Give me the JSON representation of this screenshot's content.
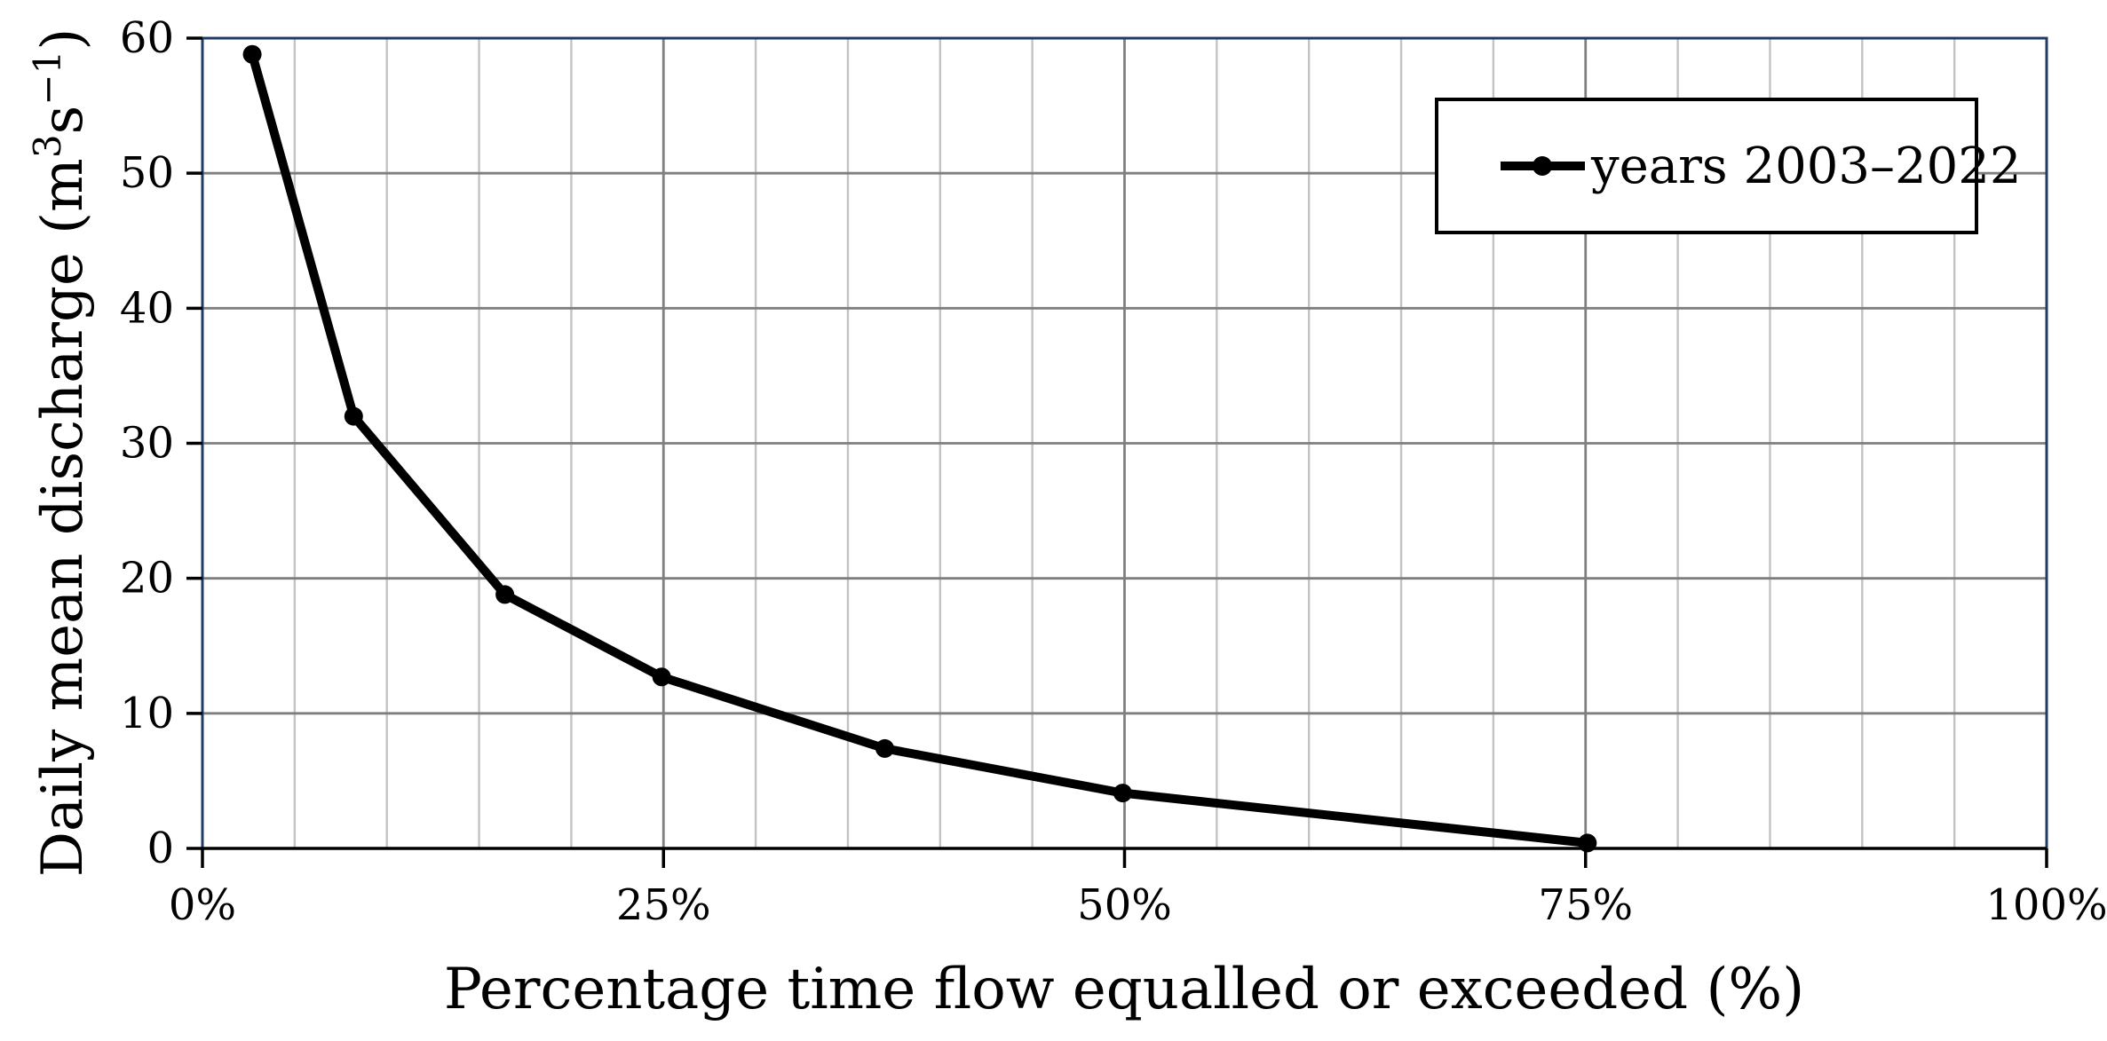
{
  "figure": {
    "kind": "flow-duration-curve"
  },
  "chart_data": {
    "type": "line",
    "title": "",
    "xlabel": "Percentage time flow equalled or exceeded (%)",
    "ylabel": "Daily mean discharge (m³s⁻¹)",
    "xlim": [
      0,
      100
    ],
    "ylim": [
      0,
      60
    ],
    "x_tick_values": [
      0,
      25,
      50,
      75,
      100
    ],
    "x_tick_labels": [
      "0%",
      "25%",
      "50%",
      "75%",
      "100%"
    ],
    "y_tick_values": [
      0,
      10,
      20,
      30,
      40,
      50,
      60
    ],
    "y_tick_labels": [
      "0",
      "10",
      "20",
      "30",
      "40",
      "50",
      "60"
    ],
    "x_minor_step": 5,
    "grid": {
      "horizontal": "major",
      "vertical": "major+minor"
    },
    "legend": {
      "label": "years 2003–2022",
      "position": "top-right",
      "border": true,
      "marker": "circle"
    },
    "series": [
      {
        "name": "years 2003–2022",
        "marker": "circle",
        "color": "#000000",
        "x": [
          2.7,
          8.2,
          16.4,
          24.9,
          37.0,
          49.9,
          75.1
        ],
        "y": [
          58.8,
          32.0,
          18.8,
          12.7,
          7.4,
          4.1,
          0.4
        ]
      }
    ]
  },
  "colors": {
    "background": "#ffffff",
    "plot_border": "#1f3c64",
    "grid_major": "#7f7f7f",
    "grid_minor": "#c3c3c3",
    "axis": "#000000",
    "series": "#000000",
    "text": "#000000",
    "legend_border": "#000000",
    "legend_fill": "#ffffff"
  }
}
